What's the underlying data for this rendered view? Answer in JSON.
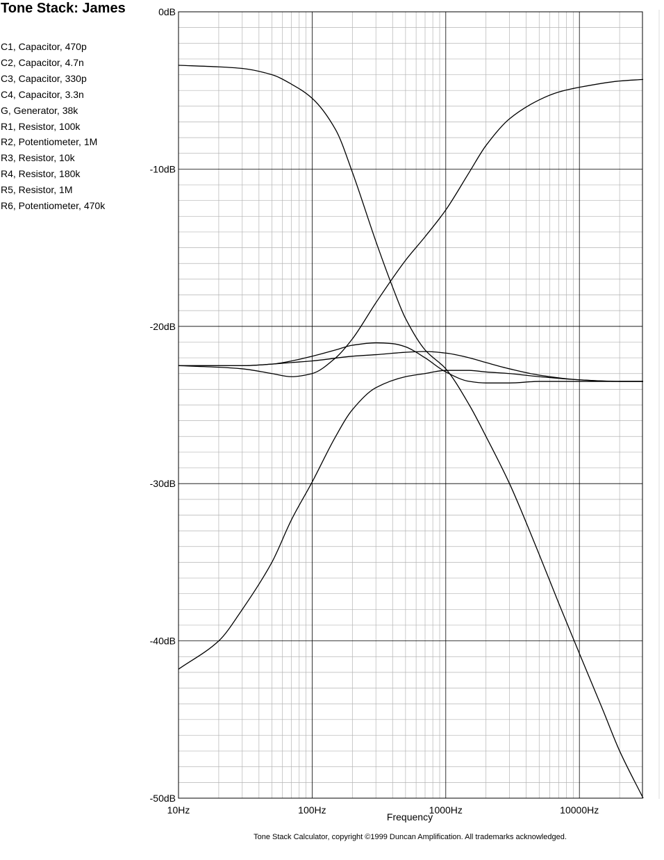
{
  "header": {
    "title": "Tone Stack: James"
  },
  "components": [
    "C1, Capacitor, 470p",
    "C2, Capacitor, 4.7n",
    "C3, Capacitor, 330p",
    "C4, Capacitor, 3.3n",
    "G, Generator, 38k",
    "R1, Resistor, 100k",
    "R2, Potentiometer, 1M",
    "R3, Resistor, 10k",
    "R4, Resistor, 180k",
    "R5, Resistor, 1M",
    "R6, Potentiometer, 470k"
  ],
  "footer": {
    "text": "Tone Stack Calculator, copyright ©1999 Duncan Amplification.  All trademarks acknowledged."
  },
  "chart_data": {
    "type": "line",
    "title": "",
    "xlabel": "Frequency",
    "ylabel": "",
    "x_scale": "log",
    "xlim": [
      10,
      30000
    ],
    "ylim": [
      -50,
      0
    ],
    "x_ticks": [
      {
        "value": 10,
        "label": "10Hz"
      },
      {
        "value": 100,
        "label": "100Hz"
      },
      {
        "value": 1000,
        "label": "1000Hz"
      },
      {
        "value": 10000,
        "label": "10000Hz"
      }
    ],
    "y_ticks": [
      {
        "value": 0,
        "label": "0dB"
      },
      {
        "value": -10,
        "label": "-10dB"
      },
      {
        "value": -20,
        "label": "-20dB"
      },
      {
        "value": -30,
        "label": "-30dB"
      },
      {
        "value": -40,
        "label": "-40dB"
      },
      {
        "value": -50,
        "label": "-50dB"
      }
    ],
    "grid": true,
    "line_color": "#000000",
    "series": [
      {
        "x": [
          10,
          20,
          30,
          50,
          70,
          100,
          150,
          200,
          300,
          400,
          500,
          700,
          1000,
          1500,
          2000,
          3000,
          5000,
          7000,
          10000,
          15000,
          20000,
          30000
        ],
        "values": [
          -3.4,
          -3.5,
          -3.6,
          -4.0,
          -4.6,
          -5.5,
          -7.5,
          -10.2,
          -14.6,
          -17.5,
          -19.5,
          -21.5,
          -22.7,
          -25.0,
          -27.0,
          -30.0,
          -34.5,
          -37.6,
          -40.8,
          -44.4,
          -47.0,
          -50.0
        ]
      },
      {
        "x": [
          10,
          20,
          30,
          50,
          70,
          100,
          150,
          200,
          300,
          500,
          700,
          1000,
          1500,
          2000,
          3000,
          5000,
          7000,
          10000,
          20000,
          30000
        ],
        "values": [
          -22.5,
          -22.6,
          -22.7,
          -23.0,
          -23.2,
          -23.0,
          -22.0,
          -20.8,
          -18.5,
          -15.8,
          -14.3,
          -12.6,
          -10.2,
          -8.5,
          -6.8,
          -5.6,
          -5.1,
          -4.8,
          -4.4,
          -4.3
        ]
      },
      {
        "x": [
          10,
          20,
          30,
          50,
          70,
          100,
          150,
          200,
          300,
          500,
          700,
          1000,
          1500,
          2000,
          3000,
          5000,
          10000,
          20000,
          30000
        ],
        "values": [
          -41.8,
          -40.0,
          -38.0,
          -35.0,
          -32.3,
          -29.9,
          -27.0,
          -25.3,
          -23.9,
          -23.2,
          -23.0,
          -22.8,
          -22.8,
          -22.9,
          -23.0,
          -23.2,
          -23.4,
          -23.5,
          -23.5
        ]
      },
      {
        "x": [
          10,
          20,
          30,
          50,
          70,
          100,
          150,
          200,
          300,
          400,
          500,
          700,
          1000,
          1500,
          2000,
          3000,
          5000,
          10000,
          20000,
          30000
        ],
        "values": [
          -22.5,
          -22.5,
          -22.5,
          -22.4,
          -22.2,
          -21.9,
          -21.5,
          -21.2,
          -21.05,
          -21.1,
          -21.3,
          -22.0,
          -22.9,
          -23.5,
          -23.6,
          -23.6,
          -23.5,
          -23.5,
          -23.5,
          -23.5
        ]
      },
      {
        "x": [
          10,
          20,
          30,
          50,
          70,
          100,
          200,
          300,
          500,
          700,
          1000,
          1500,
          2000,
          3000,
          5000,
          10000,
          20000,
          30000
        ],
        "values": [
          -22.5,
          -22.5,
          -22.5,
          -22.4,
          -22.3,
          -22.2,
          -21.9,
          -21.8,
          -21.65,
          -21.6,
          -21.7,
          -22.0,
          -22.3,
          -22.7,
          -23.1,
          -23.4,
          -23.5,
          -23.5
        ]
      }
    ]
  }
}
